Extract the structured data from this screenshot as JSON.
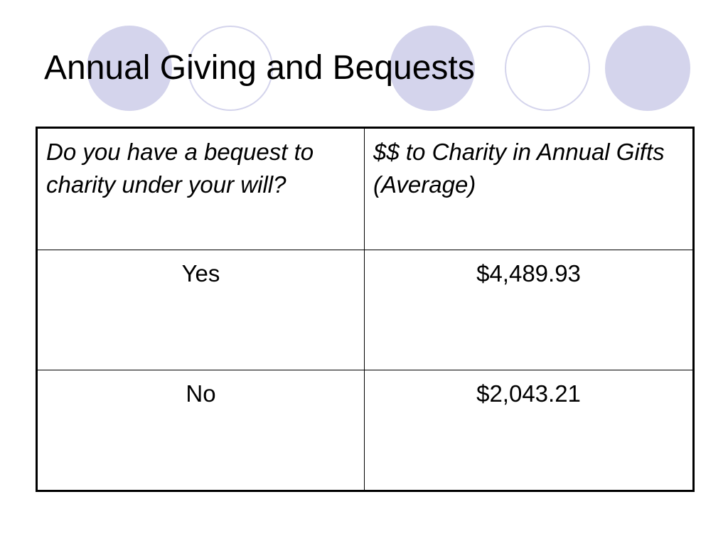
{
  "title": "Annual Giving and Bequests",
  "colors": {
    "accent_circle": "#d4d4ec"
  },
  "table": {
    "headers": [
      "Do you have a bequest to charity under your will?",
      "$$ to Charity in Annual Gifts (Average)"
    ],
    "rows": [
      [
        "Yes",
        "$4,489.93"
      ],
      [
        "No",
        "$2,043.21"
      ]
    ]
  }
}
